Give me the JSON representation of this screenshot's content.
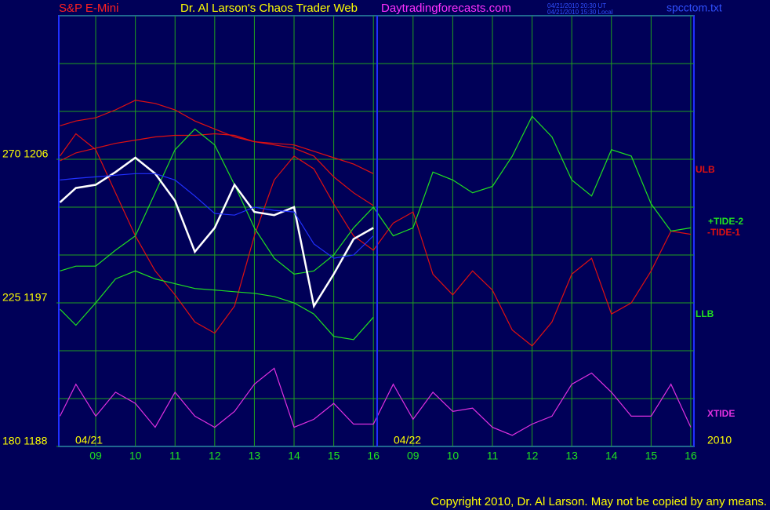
{
  "header": {
    "instrument": "S&P E-Mini",
    "title": "Dr. Al Larson's Chaos Trader Web",
    "site": "Daytradingforecasts.com",
    "timestamp_ut": "04/21/2010 20:30 UT",
    "timestamp_local": "04/21/2010 15:30 Local",
    "file": "spcctom.txt"
  },
  "chart_data": {
    "type": "line",
    "x": [
      8.1,
      8.5,
      9,
      9.5,
      10,
      10.5,
      11,
      11.5,
      12,
      12.5,
      13,
      13.5,
      14,
      14.5,
      15,
      15.5,
      16,
      16.5,
      17,
      17.5,
      18,
      18.5,
      19,
      19.5,
      20,
      20.5,
      21,
      21.5,
      22,
      22.5,
      23,
      23.5,
      24
    ],
    "xlim": [
      8.07,
      24.08
    ],
    "xticks": [
      {
        "value": 9,
        "label": "09"
      },
      10,
      11,
      12,
      13,
      14,
      15,
      16,
      {
        "value": 17,
        "label": "09"
      },
      {
        "value": 18,
        "label": "10"
      },
      {
        "value": 19,
        "label": "11"
      },
      {
        "value": 20,
        "label": "12"
      },
      {
        "value": 21,
        "label": "13"
      },
      {
        "value": 22,
        "label": "14"
      },
      {
        "value": 23,
        "label": "15"
      },
      {
        "value": 24,
        "label": "16"
      }
    ],
    "ylim": [
      1188,
      1215
    ],
    "yticks": [
      {
        "value": 1206,
        "label": "270 1206"
      },
      {
        "value": 1197,
        "label": "225 1197"
      },
      {
        "value": 1188,
        "label": "180 1188"
      }
    ],
    "ygrid": [
      1188,
      1191,
      1194,
      1197,
      1200,
      1203,
      1206,
      1209,
      1212,
      1215
    ],
    "grid": true,
    "date_labels": [
      "04/21",
      "04/22",
      "2010"
    ],
    "series": [
      {
        "name": "ULB",
        "color": "#e01010",
        "values": [
          1208.1,
          1208.4,
          1208.6,
          1209.1,
          1209.7,
          1209.5,
          1209.1,
          1208.4,
          1207.9,
          1207.4,
          1207.1,
          1207.0,
          1206.9,
          1206.5,
          1206.1,
          1205.7,
          1205.1,
          null,
          null,
          null,
          null,
          null,
          null,
          null,
          null,
          null,
          null,
          null,
          null,
          null,
          null,
          null,
          null
        ]
      },
      {
        "color": "#e01010",
        "values": [
          1205.9,
          1206.4,
          1206.7,
          1207.0,
          1207.2,
          1207.4,
          1207.5,
          1207.5,
          1207.6,
          1207.5,
          1207.1,
          1206.9,
          1206.7,
          1206.2,
          1204.9,
          1203.9,
          1203.1,
          null,
          null,
          null,
          null,
          null,
          null,
          null,
          null,
          null,
          null,
          null,
          null,
          null,
          null,
          null,
          null
        ]
      },
      {
        "name": "-TIDE-1",
        "color": "#e01010",
        "values": [
          1206.2,
          1207.6,
          1206.6,
          1203.9,
          1201.2,
          1199.0,
          1197.5,
          1195.8,
          1195.1,
          1196.8,
          1201.2,
          1204.7,
          1206.2,
          1205.4,
          1203.2,
          1201.2,
          1200.3,
          1202.0,
          1202.7,
          1198.8,
          1197.5,
          1199.0,
          1197.8,
          1195.3,
          1194.3,
          1195.8,
          1198.8,
          1199.8,
          1196.3,
          1197.0,
          1199.0,
          1201.5,
          1201.3
        ]
      },
      {
        "name": "+TIDE-2",
        "color": "#20e020",
        "values": [
          1199.0,
          1199.3,
          1199.3,
          1200.3,
          1201.2,
          1203.9,
          1206.6,
          1207.9,
          1206.9,
          1204.4,
          1201.7,
          1199.8,
          1198.8,
          1199.0,
          1200.0,
          1201.7,
          1203.0,
          1201.2,
          1201.7,
          1205.2,
          1204.7,
          1203.9,
          1204.3,
          1206.2,
          1208.7,
          1207.4,
          1204.7,
          1203.7,
          1206.6,
          1206.2,
          1203.2,
          1201.5,
          1201.7
        ]
      },
      {
        "name": "LLB",
        "color": "#20e020",
        "values": [
          1196.6,
          1195.6,
          1197.0,
          1198.5,
          1199.0,
          1198.5,
          1198.2,
          1197.9,
          1197.8,
          1197.7,
          1197.6,
          1197.4,
          1197.0,
          1196.3,
          1194.9,
          1194.7,
          1196.1,
          null,
          null,
          null,
          null,
          null,
          null,
          null,
          null,
          null,
          null,
          null,
          null,
          null,
          null,
          null,
          null
        ]
      },
      {
        "name": "XTIDE",
        "color": "#e030e0",
        "values": [
          1189.9,
          1191.9,
          1189.9,
          1191.4,
          1190.7,
          1189.2,
          1191.4,
          1189.9,
          1189.2,
          1190.2,
          1191.9,
          1192.9,
          1189.2,
          1189.7,
          1190.7,
          1189.4,
          1189.4,
          1191.9,
          1189.7,
          1191.4,
          1190.2,
          1190.4,
          1189.2,
          1188.7,
          1189.4,
          1189.9,
          1191.9,
          1192.6,
          1191.4,
          1189.9,
          1189.9,
          1191.9,
          1189.2
        ]
      },
      {
        "color": "#ffffff",
        "values": [
          1203.3,
          1204.2,
          1204.4,
          1205.2,
          1206.1,
          1205.1,
          1203.4,
          1200.2,
          1201.7,
          1204.4,
          1202.7,
          1202.5,
          1203.0,
          1196.8,
          1198.8,
          1201.0,
          1201.7,
          null,
          null,
          null,
          null,
          null,
          null,
          null,
          null,
          null,
          null,
          null,
          null,
          null,
          null,
          null,
          null
        ]
      },
      {
        "color": "#2030ff",
        "values": [
          1204.7,
          1204.8,
          1204.9,
          1205.0,
          1205.1,
          1205.1,
          1204.7,
          1203.7,
          1202.6,
          1202.5,
          1203.0,
          1202.8,
          1202.7,
          1200.7,
          1199.8,
          1200.0,
          1201.2,
          null,
          null,
          null,
          null,
          null,
          null,
          null,
          null,
          null,
          null,
          null,
          null,
          null,
          null,
          null,
          null
        ]
      }
    ]
  },
  "footer": {
    "copyright": "Copyright 2010, Dr. Al Larson. May not be copied by any means."
  }
}
